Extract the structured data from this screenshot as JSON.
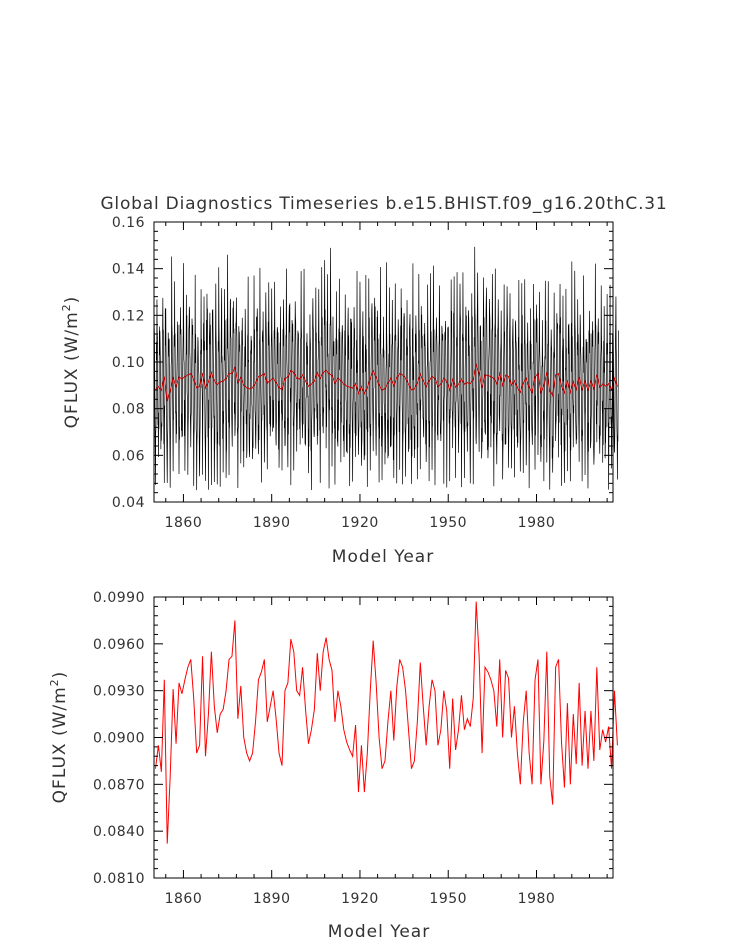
{
  "chart_data": [
    {
      "type": "line",
      "title": "Global Diagnostics Timeseries b.e15.BHIST.f09_g16.20thC.31",
      "xlabel": "Model Year",
      "ylabel_base": "QFLUX (W/m",
      "ylabel_sup": "2",
      "ylabel_close": ")",
      "xlim": [
        1850,
        2006
      ],
      "ylim": [
        0.04,
        0.16
      ],
      "x_ticks": [
        1860,
        1890,
        1920,
        1950,
        1980
      ],
      "x_tick_labels": [
        "1860",
        "1890",
        "1920",
        "1950",
        "1980"
      ],
      "y_ticks": [
        0.04,
        0.06,
        0.08,
        0.1,
        0.12,
        0.14,
        0.16
      ],
      "y_tick_labels": [
        "0.04",
        "0.06",
        "0.08",
        "0.10",
        "0.12",
        "0.14",
        "0.16"
      ],
      "grid": false,
      "series": [
        {
          "color": "#000000",
          "description_resolution": "monthly",
          "annual_cycle_mean": 0.091,
          "annual_cycle_range": [
            0.045,
            0.157
          ],
          "values_summary": "monthly values oscillating between about 0.05 and 0.15"
        },
        {
          "color": "#cc0000",
          "resolution": "annual",
          "ref": "annual_values"
        }
      ]
    },
    {
      "type": "line",
      "xlabel": "Model Year",
      "ylabel_base": "QFLUX (W/m",
      "ylabel_sup": "2",
      "ylabel_close": ")",
      "xlim": [
        1850,
        2006
      ],
      "ylim": [
        0.081,
        0.099
      ],
      "x_ticks": [
        1860,
        1890,
        1920,
        1950,
        1980
      ],
      "x_tick_labels": [
        "1860",
        "1890",
        "1920",
        "1950",
        "1980"
      ],
      "y_ticks": [
        0.081,
        0.084,
        0.087,
        0.09,
        0.093,
        0.096,
        0.099
      ],
      "y_tick_labels": [
        "0.0810",
        "0.0840",
        "0.0870",
        "0.0900",
        "0.0930",
        "0.0960",
        "0.0990"
      ],
      "grid": false,
      "series": [
        {
          "color": "#ff0000",
          "resolution": "annual",
          "ref": "annual_values"
        }
      ]
    }
  ],
  "annual_years_start": 1850,
  "annual_values": [
    0.088,
    0.0895,
    0.0878,
    0.0937,
    0.0832,
    0.0875,
    0.0931,
    0.0896,
    0.0935,
    0.0928,
    0.0937,
    0.0945,
    0.095,
    0.0925,
    0.089,
    0.0895,
    0.0952,
    0.0888,
    0.0915,
    0.0955,
    0.092,
    0.0903,
    0.0915,
    0.0918,
    0.093,
    0.095,
    0.0952,
    0.0975,
    0.0912,
    0.0933,
    0.09,
    0.089,
    0.0885,
    0.089,
    0.091,
    0.0937,
    0.0942,
    0.095,
    0.091,
    0.092,
    0.093,
    0.0912,
    0.089,
    0.0882,
    0.093,
    0.0935,
    0.0963,
    0.0955,
    0.093,
    0.0927,
    0.0945,
    0.0918,
    0.0896,
    0.0905,
    0.0918,
    0.0954,
    0.093,
    0.0955,
    0.0964,
    0.095,
    0.0943,
    0.091,
    0.093,
    0.092,
    0.0905,
    0.0897,
    0.0892,
    0.0888,
    0.0908,
    0.0865,
    0.0895,
    0.0865,
    0.089,
    0.093,
    0.0962,
    0.0935,
    0.09,
    0.088,
    0.0885,
    0.091,
    0.093,
    0.0898,
    0.0932,
    0.095,
    0.0945,
    0.093,
    0.0905,
    0.088,
    0.0885,
    0.091,
    0.0948,
    0.092,
    0.0895,
    0.092,
    0.0937,
    0.093,
    0.0895,
    0.0905,
    0.093,
    0.0917,
    0.088,
    0.0925,
    0.0892,
    0.0905,
    0.0927,
    0.0905,
    0.0912,
    0.0907,
    0.0925,
    0.0987,
    0.0952,
    0.089,
    0.0945,
    0.0942,
    0.0937,
    0.093,
    0.0907,
    0.095,
    0.09,
    0.0943,
    0.0938,
    0.09,
    0.092,
    0.089,
    0.087,
    0.091,
    0.093,
    0.089,
    0.087,
    0.0937,
    0.095,
    0.087,
    0.0898,
    0.0955,
    0.0875,
    0.0857,
    0.0945,
    0.095,
    0.0897,
    0.0868,
    0.0922,
    0.087,
    0.0915,
    0.0883,
    0.0935,
    0.0882,
    0.0917,
    0.088,
    0.0917,
    0.0885,
    0.0945,
    0.0892,
    0.0905,
    0.0897,
    0.0907,
    0.088,
    0.093,
    0.0895
  ]
}
